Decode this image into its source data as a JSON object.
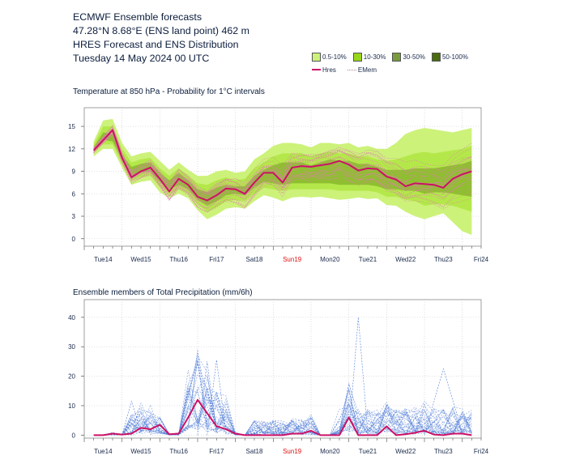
{
  "header": {
    "line1": "ECMWF Ensemble forecasts",
    "line2": "47.28°N 8.68°E (ENS land point) 462 m",
    "line3": "HRES Forecast and ENS Distribution",
    "line4": "Tuesday 14 May 2024 00 UTC"
  },
  "legend": {
    "items": [
      {
        "label": "0.5-10%",
        "color": "#ccf27a"
      },
      {
        "label": "10-30%",
        "color": "#99d61a"
      },
      {
        "label": "30-50%",
        "color": "#7a9a40"
      },
      {
        "label": "50-100%",
        "color": "#4a6b10"
      }
    ],
    "hres_label": "Hres",
    "emem_label": "EMem"
  },
  "chart_data": [
    {
      "type": "area",
      "title": "Temperature at 850 hPa - Probability for 1°C intervals",
      "xlabel": "",
      "ylabel": "",
      "ylim": [
        -1,
        17.5
      ],
      "yticks": [
        0,
        3,
        6,
        9,
        12,
        15
      ],
      "x_days": [
        "Tue14",
        "Wed15",
        "Thu16",
        "Fri17",
        "Sat18",
        "Sun19",
        "Mon20",
        "Tue21",
        "Wed22",
        "Thu23",
        "Fri24"
      ],
      "x_day_colors": [
        "#1a2a4a",
        "#1a2a4a",
        "#1a2a4a",
        "#1a2a4a",
        "#1a2a4a",
        "#e01010",
        "#1a2a4a",
        "#1a2a4a",
        "#1a2a4a",
        "#1a2a4a",
        "#1a2a4a"
      ],
      "series": [
        {
          "name": "Hres",
          "color": "#cc1166",
          "x_hours": [
            0,
            12,
            18,
            24,
            30,
            36,
            42,
            48,
            54,
            60,
            66,
            72,
            78,
            84,
            90,
            96,
            102,
            108,
            114,
            120,
            126,
            132,
            138,
            144,
            150,
            156,
            162,
            168,
            174,
            180,
            186,
            192,
            198,
            204,
            210,
            216,
            222,
            228,
            234,
            240
          ],
          "values": [
            11.8,
            14.5,
            10.8,
            8.2,
            9.0,
            9.5,
            8.0,
            6.3,
            8.0,
            7.2,
            5.6,
            5.1,
            5.8,
            6.7,
            6.6,
            6.0,
            7.5,
            8.8,
            8.8,
            7.5,
            9.5,
            9.7,
            9.6,
            9.8,
            10.0,
            10.4,
            9.9,
            9.1,
            9.4,
            9.3,
            8.3,
            7.9,
            7.0,
            7.4,
            7.3,
            7.2,
            6.8,
            8.0,
            8.6,
            9.0
          ]
        },
        {
          "name": "EMem",
          "color": "#e07ab0",
          "values": []
        }
      ],
      "prob_band": {
        "x_hours": [
          0,
          6,
          12,
          18,
          24,
          30,
          36,
          42,
          48,
          54,
          60,
          66,
          72,
          78,
          84,
          90,
          96,
          102,
          108,
          114,
          120,
          126,
          132,
          138,
          144,
          150,
          156,
          162,
          168,
          174,
          180,
          186,
          192,
          198,
          204,
          210,
          216,
          222,
          228,
          234,
          240
        ],
        "outer_low": [
          11.0,
          12.0,
          12.0,
          9.5,
          7.2,
          7.6,
          7.8,
          6.2,
          5.4,
          6.0,
          5.4,
          3.8,
          2.6,
          3.2,
          4.0,
          4.2,
          4.0,
          5.0,
          5.8,
          5.5,
          5.0,
          5.5,
          5.6,
          5.5,
          5.6,
          5.4,
          5.2,
          5.3,
          5.5,
          5.3,
          5.4,
          4.5,
          4.4,
          3.6,
          3.0,
          2.6,
          3.0,
          3.4,
          2.2,
          1.0,
          0.5
        ],
        "outer_high": [
          13.0,
          15.8,
          16.0,
          12.8,
          11.0,
          11.4,
          11.6,
          10.4,
          9.2,
          10.2,
          9.2,
          8.4,
          8.4,
          9.0,
          9.2,
          8.8,
          9.0,
          10.6,
          11.4,
          12.4,
          12.8,
          12.8,
          12.6,
          12.2,
          12.8,
          12.8,
          12.6,
          12.8,
          12.2,
          12.4,
          12.0,
          12.0,
          12.8,
          14.0,
          14.5,
          14.8,
          14.6,
          14.4,
          14.2,
          14.5,
          14.8
        ],
        "mid_low": [
          11.4,
          12.6,
          12.6,
          10.0,
          7.8,
          8.2,
          8.4,
          7.0,
          6.0,
          6.6,
          6.0,
          4.6,
          3.6,
          4.2,
          5.0,
          5.2,
          5.0,
          6.0,
          6.8,
          6.6,
          6.4,
          6.6,
          6.6,
          6.6,
          6.6,
          6.6,
          6.4,
          6.4,
          6.4,
          6.4,
          6.2,
          5.6,
          5.6,
          5.2,
          5.0,
          4.4,
          4.6,
          4.6,
          4.4,
          4.0,
          3.6
        ],
        "mid_high": [
          12.6,
          15.0,
          15.0,
          12.0,
          10.2,
          10.6,
          10.8,
          9.4,
          8.4,
          9.4,
          8.4,
          7.4,
          7.2,
          7.8,
          8.2,
          7.8,
          8.0,
          9.4,
          10.2,
          11.0,
          11.4,
          11.4,
          11.4,
          11.0,
          11.4,
          11.6,
          11.4,
          11.4,
          11.0,
          11.0,
          10.6,
          10.4,
          10.6,
          11.0,
          11.4,
          11.6,
          11.4,
          11.6,
          11.8,
          12.0,
          12.4
        ],
        "core_low": [
          11.8,
          13.2,
          13.0,
          10.6,
          8.4,
          8.8,
          9.0,
          7.6,
          6.6,
          7.2,
          6.6,
          5.2,
          4.4,
          5.0,
          5.8,
          6.0,
          5.8,
          6.8,
          7.6,
          7.4,
          7.2,
          7.4,
          7.4,
          7.4,
          7.4,
          7.4,
          7.2,
          7.2,
          7.2,
          7.2,
          7.0,
          6.6,
          6.6,
          6.4,
          6.4,
          6.0,
          6.2,
          6.2,
          6.0,
          5.8,
          5.6
        ],
        "core_high": [
          12.2,
          14.2,
          14.0,
          11.2,
          9.6,
          10.0,
          10.2,
          8.8,
          7.8,
          8.8,
          7.8,
          6.6,
          6.2,
          6.8,
          7.2,
          7.0,
          7.0,
          8.4,
          9.2,
          9.8,
          10.2,
          10.2,
          10.2,
          9.8,
          10.2,
          10.6,
          10.4,
          10.4,
          10.0,
          10.0,
          9.6,
          9.2,
          9.2,
          9.2,
          9.4,
          9.4,
          9.4,
          9.6,
          9.8,
          10.0,
          10.4
        ]
      }
    },
    {
      "type": "line",
      "title": "Ensemble members of Total Precipitation (mm/6h)",
      "xlabel": "",
      "ylabel": "",
      "ylim": [
        -1,
        46
      ],
      "yticks": [
        0,
        10,
        20,
        30,
        40
      ],
      "x_days": [
        "Tue14",
        "Wed15",
        "Thu16",
        "Fri17",
        "Sat18",
        "Sun19",
        "Mon20",
        "Tue21",
        "Wed22",
        "Thu23",
        "Fri24"
      ],
      "series": [
        {
          "name": "Hres",
          "color": "#cc1166",
          "x_hours": [
            0,
            6,
            12,
            18,
            24,
            30,
            36,
            42,
            48,
            54,
            60,
            66,
            72,
            78,
            84,
            90,
            96,
            102,
            108,
            114,
            120,
            126,
            132,
            138,
            144,
            150,
            156,
            162,
            168,
            174,
            180,
            186,
            192,
            198,
            204,
            210,
            216,
            222,
            228,
            234,
            240
          ],
          "values": [
            0,
            0,
            0.5,
            0.2,
            0.5,
            2.5,
            2.0,
            3.5,
            0.3,
            0.5,
            6.0,
            12.0,
            7.5,
            3.0,
            2.0,
            0.5,
            0,
            0,
            0,
            0,
            0,
            0.5,
            0.5,
            1.5,
            0,
            0,
            0,
            6.0,
            0,
            0,
            0,
            3.0,
            0,
            0.3,
            0.8,
            1.5,
            0.2,
            0,
            0.5,
            0.5,
            0
          ]
        },
        {
          "name": "EMem",
          "color": "#5580d8",
          "values": []
        }
      ]
    }
  ]
}
